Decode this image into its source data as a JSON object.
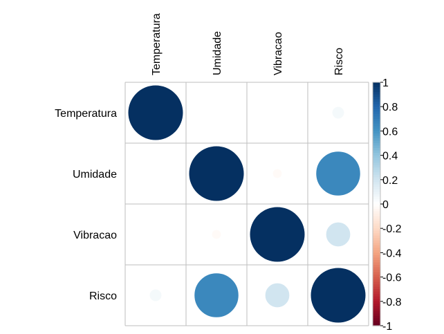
{
  "chart_data": {
    "type": "heatmap",
    "subtype": "correlation-circle-matrix",
    "variables": [
      "Temperatura",
      "Umidade",
      "Vibracao",
      "Risco"
    ],
    "matrix": [
      [
        1.0,
        0.0,
        0.0,
        0.05
      ],
      [
        0.0,
        1.0,
        -0.03,
        0.65
      ],
      [
        0.0,
        -0.03,
        1.0,
        0.2
      ],
      [
        0.05,
        0.65,
        0.2,
        1.0
      ]
    ],
    "colorbar": {
      "range": [
        -1,
        1
      ],
      "ticks": [
        "1",
        "0.8",
        "0.6",
        "0.4",
        "0.2",
        "0",
        "-0.2",
        "-0.4",
        "-0.6",
        "-0.8",
        "-1"
      ],
      "low_color": "#67001F",
      "mid_color": "#FFFFFF",
      "high_color": "#053061"
    },
    "grid": true,
    "legend_position": "right"
  }
}
